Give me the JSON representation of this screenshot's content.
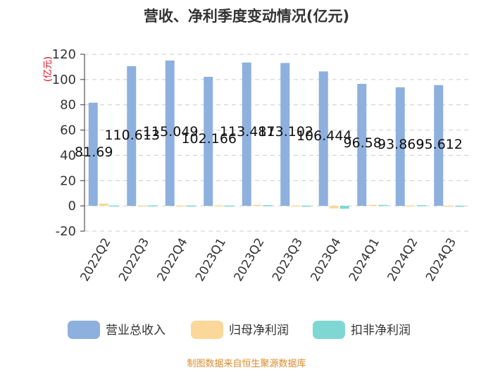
{
  "chart_data": {
    "type": "bar",
    "title": "营收、净利季度变动情况(亿元)",
    "ylabel": "(亿元)",
    "xlabel": "",
    "ylim": [
      -20,
      120
    ],
    "yticks": [
      -20,
      0,
      20,
      40,
      60,
      80,
      100,
      120
    ],
    "grid": true,
    "legend_position": "bottom",
    "categories": [
      "2022Q2",
      "2022Q3",
      "2022Q4",
      "2023Q1",
      "2023Q2",
      "2023Q3",
      "2023Q4",
      "2024Q1",
      "2024Q2",
      "2024Q3"
    ],
    "series": [
      {
        "name": "营业总收入",
        "color": "#8eb0de",
        "values": [
          81.69,
          110.613,
          115.049,
          102.166,
          113.487,
          113.102,
          106.444,
          96.58,
          93.869,
          95.612
        ],
        "labels": [
          "81.69",
          "110.613",
          "115.049",
          "102.166",
          "113.487",
          "113.102",
          "106.444",
          "96.58",
          "93.869",
          "95.612"
        ]
      },
      {
        "name": "归母净利润",
        "color": "#fbd79a",
        "values": [
          1.9,
          0.3,
          0.2,
          0.4,
          0.9,
          0.3,
          -2.0,
          0.9,
          0.4,
          0.2
        ]
      },
      {
        "name": "扣非净利润",
        "color": "#7fd7d4",
        "values": [
          0.3,
          0.4,
          0.3,
          0.3,
          0.6,
          0.2,
          -2.3,
          0.8,
          0.6,
          0.1
        ]
      }
    ]
  },
  "source": "制图数据来自恒生聚源数据库"
}
